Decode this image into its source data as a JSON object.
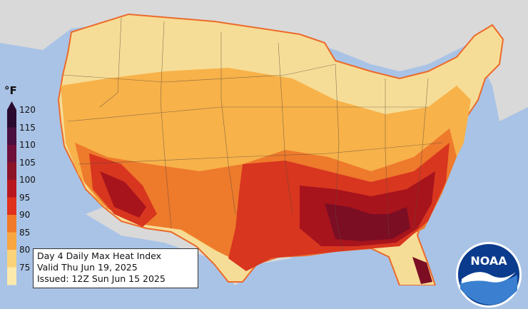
{
  "legend": {
    "unit": "°F",
    "ticks": [
      "120",
      "115",
      "110",
      "105",
      "100",
      "95",
      "90",
      "85",
      "80",
      "75"
    ],
    "colors": [
      "#2a0a2e",
      "#4a0f3e",
      "#6e0f3a",
      "#8c1228",
      "#b8171f",
      "#e0301e",
      "#f07a2a",
      "#f7a640",
      "#f9d27a",
      "#fbe9ad"
    ]
  },
  "info": {
    "line1": "Day 4 Daily Max Heat Index",
    "line2": "Valid Thu Jun 19, 2025",
    "line3": "Issued: 12Z Sun Jun 15 2025"
  },
  "logo": {
    "text": "NOAA",
    "colors": {
      "dark": "#0b3b8c",
      "light": "#3a7fd0",
      "white": "#ffffff"
    }
  },
  "map": {
    "ocean_color": "#a9c3e6",
    "land_outside_color": "#d9d9d9",
    "zone_colors": {
      "cool": "#f6dd97",
      "mild": "#f7b24a",
      "warm": "#ee7a2c",
      "hot": "#d8361f",
      "very_hot": "#a8141c",
      "extreme": "#7c0e24"
    }
  }
}
